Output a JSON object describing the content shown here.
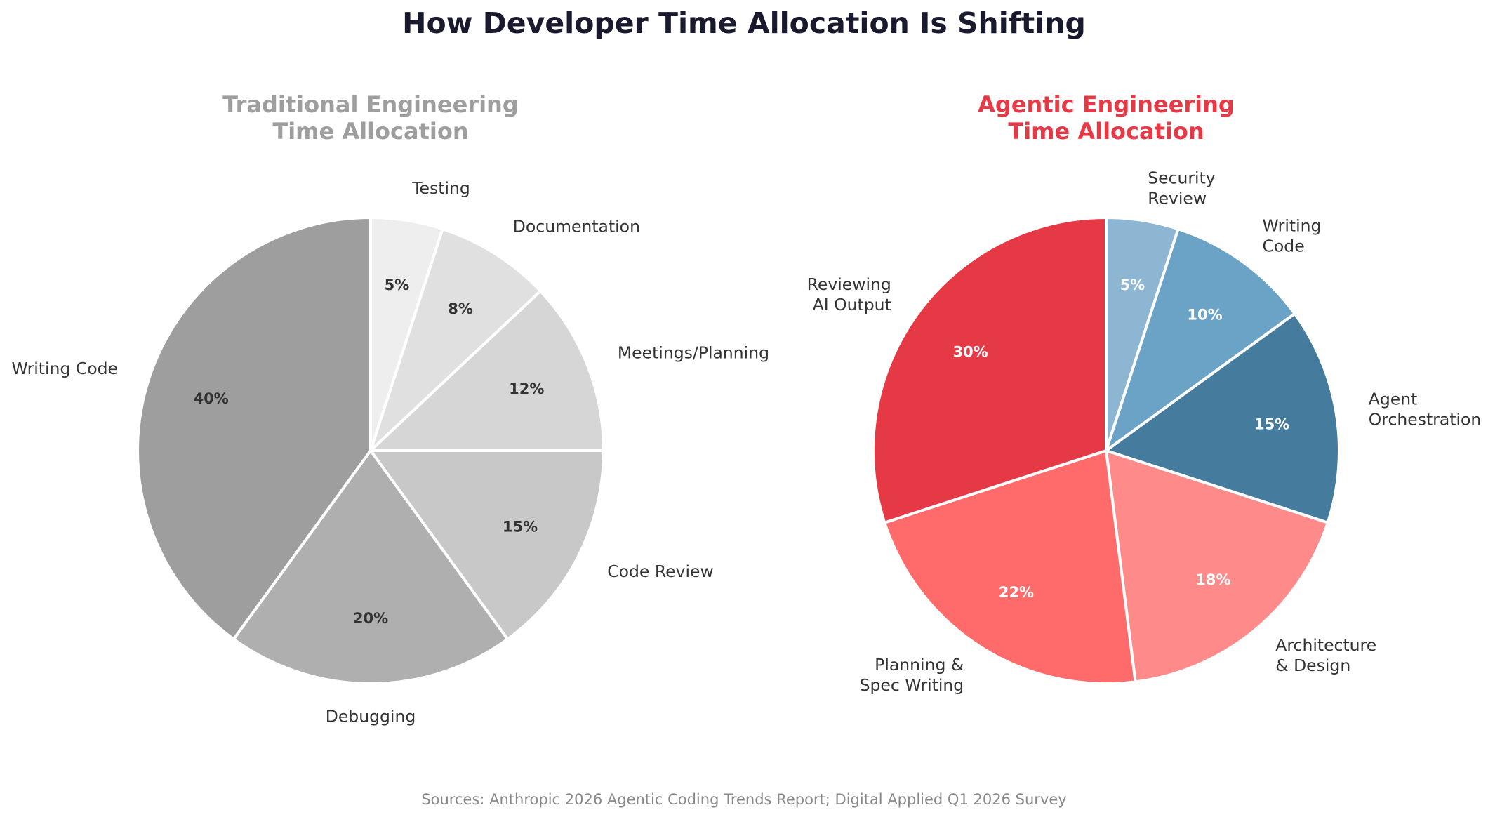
{
  "title": "How Developer Time Allocation Is Shifting",
  "source_note": "Sources: Anthropic 2026 Agentic Coding Trends Report; Digital Applied Q1 2026 Survey",
  "chart_data": [
    {
      "type": "pie",
      "title_lines": [
        "Traditional Engineering",
        "Time Allocation"
      ],
      "title_color": "#9e9e9e",
      "pct_label_color": "#333333",
      "start_angle": 90,
      "direction": "clockwise-from-top",
      "slices": [
        {
          "label_lines": [
            "Testing"
          ],
          "value": 5,
          "color": "#eeeeee",
          "pct": "5%"
        },
        {
          "label_lines": [
            "Documentation"
          ],
          "value": 8,
          "color": "#e0e0e0",
          "pct": "8%"
        },
        {
          "label_lines": [
            "Meetings/Planning"
          ],
          "value": 12,
          "color": "#d6d6d6",
          "pct": "12%"
        },
        {
          "label_lines": [
            "Code Review"
          ],
          "value": 15,
          "color": "#c8c8c8",
          "pct": "15%"
        },
        {
          "label_lines": [
            "Debugging"
          ],
          "value": 20,
          "color": "#afafaf",
          "pct": "20%"
        },
        {
          "label_lines": [
            "Writing Code"
          ],
          "value": 40,
          "color": "#9e9e9e",
          "pct": "40%"
        }
      ]
    },
    {
      "type": "pie",
      "title_lines": [
        "Agentic Engineering",
        "Time Allocation"
      ],
      "title_color": "#e63946",
      "pct_label_color": "#ffffff",
      "start_angle": 90,
      "direction": "clockwise-from-top",
      "slices": [
        {
          "label_lines": [
            "Security",
            "Review"
          ],
          "value": 5,
          "color": "#8db6d3",
          "pct": "5%"
        },
        {
          "label_lines": [
            "Writing",
            "Code"
          ],
          "value": 10,
          "color": "#6ba3c7",
          "pct": "10%"
        },
        {
          "label_lines": [
            "Agent",
            "Orchestration"
          ],
          "value": 15,
          "color": "#457b9d",
          "pct": "15%"
        },
        {
          "label_lines": [
            "Architecture",
            "& Design"
          ],
          "value": 18,
          "color": "#ff8a8a",
          "pct": "18%"
        },
        {
          "label_lines": [
            "Planning &",
            "Spec Writing"
          ],
          "value": 22,
          "color": "#ff6b6b",
          "pct": "22%"
        },
        {
          "label_lines": [
            "Reviewing",
            "AI Output"
          ],
          "value": 30,
          "color": "#e63946",
          "pct": "30%"
        }
      ]
    }
  ]
}
